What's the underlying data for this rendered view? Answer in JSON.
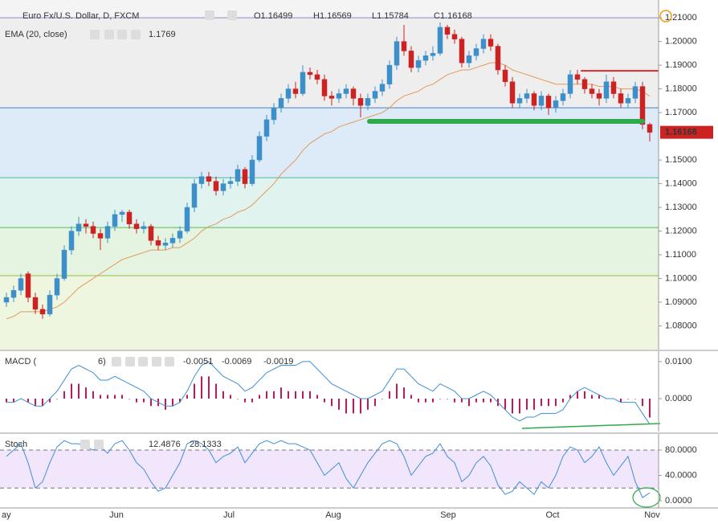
{
  "chart_data": [
    {
      "type": "candlestick",
      "title": "Euro Fx/U.S. Dollar, D, FXCM",
      "header": [
        "O1.16499",
        "H1.16569",
        "L1.15784",
        "C1.16168"
      ],
      "colors": {
        "up": "#3d8fc9",
        "down": "#cc2222"
      },
      "ylim": [
        1.07,
        1.2175
      ],
      "yticks": [
        {
          "value": 1.21,
          "label": "1.21000"
        },
        {
          "value": 1.2,
          "label": "1.20000"
        },
        {
          "value": 1.19,
          "label": "1.19000"
        },
        {
          "value": 1.18,
          "label": "1.18000"
        },
        {
          "value": 1.17,
          "label": "1.17000"
        },
        {
          "value": 1.15,
          "label": "1.15000"
        },
        {
          "value": 1.14,
          "label": "1.14000"
        },
        {
          "value": 1.13,
          "label": "1.13000"
        },
        {
          "value": 1.12,
          "label": "1.12000"
        },
        {
          "value": 1.11,
          "label": "1.11000"
        },
        {
          "value": 1.1,
          "label": "1.10000"
        },
        {
          "value": 1.09,
          "label": "1.09000"
        },
        {
          "value": 1.08,
          "label": "1.08000"
        }
      ],
      "x_labels": [
        "ay",
        "Jun",
        "Jul",
        "Aug",
        "Sep",
        "Oct",
        "Nov"
      ],
      "levels": {
        "values": [
          1.21,
          1.172,
          1.1425,
          1.1215,
          1.1012
        ],
        "colors": [
          "#8a8ad0",
          "#4a7fc0",
          "#4fb3a0",
          "#5cb85c",
          "#9cb84a"
        ],
        "fills": [
          "#eeeeee",
          "#dcebf7",
          "#e0f3ee",
          "#e5f4e0",
          "#eef6e0"
        ]
      },
      "drawings": [
        {
          "color": "#d32f2f",
          "price": 1.1876
        },
        {
          "color": "#2eaa4a",
          "price": 1.1663
        }
      ],
      "ema": {
        "name": "EMA (20, close)",
        "color": "#e39a5a",
        "values": [
          1.083,
          1.084,
          1.086,
          1.086,
          1.086,
          1.086,
          1.087,
          1.088,
          1.09,
          1.093,
          1.096,
          1.098,
          1.1,
          1.102,
          1.104,
          1.106,
          1.108,
          1.109,
          1.11,
          1.111,
          1.112,
          1.112,
          1.112,
          1.113,
          1.113,
          1.115,
          1.117,
          1.12,
          1.122,
          1.123,
          1.125,
          1.126,
          1.128,
          1.129,
          1.131,
          1.134,
          1.137,
          1.14,
          1.144,
          1.147,
          1.15,
          1.154,
          1.157,
          1.159,
          1.161,
          1.162,
          1.164,
          1.165,
          1.166,
          1.167,
          1.168,
          1.169,
          1.17,
          1.172,
          1.175,
          1.177,
          1.178,
          1.179,
          1.181,
          1.182,
          1.184,
          1.186,
          1.187,
          1.188,
          1.188,
          1.189,
          1.19,
          1.191,
          1.191,
          1.19,
          1.188,
          1.187,
          1.186,
          1.185,
          1.184,
          1.183,
          1.182,
          1.182,
          1.182,
          1.182,
          1.182,
          1.182,
          1.181,
          1.181,
          1.181,
          1.18,
          1.18,
          1.18,
          1.179,
          1.1769
        ]
      },
      "candles": [
        [
          1.09,
          1.094,
          1.088,
          1.092
        ],
        [
          1.092,
          1.097,
          1.09,
          1.095
        ],
        [
          1.095,
          1.102,
          1.093,
          1.1
        ],
        [
          1.102,
          1.103,
          1.09,
          1.092
        ],
        [
          1.092,
          1.094,
          1.085,
          1.087
        ],
        [
          1.087,
          1.089,
          1.083,
          1.085
        ],
        [
          1.085,
          1.095,
          1.084,
          1.093
        ],
        [
          1.093,
          1.102,
          1.091,
          1.1
        ],
        [
          1.1,
          1.114,
          1.099,
          1.112
        ],
        [
          1.112,
          1.122,
          1.11,
          1.12
        ],
        [
          1.12,
          1.126,
          1.118,
          1.123
        ],
        [
          1.123,
          1.125,
          1.119,
          1.122
        ],
        [
          1.122,
          1.124,
          1.117,
          1.119
        ],
        [
          1.119,
          1.121,
          1.112,
          1.117
        ],
        [
          1.117,
          1.124,
          1.115,
          1.122
        ],
        [
          1.122,
          1.129,
          1.12,
          1.127
        ],
        [
          1.127,
          1.129,
          1.124,
          1.128
        ],
        [
          1.128,
          1.129,
          1.121,
          1.123
        ],
        [
          1.123,
          1.125,
          1.119,
          1.121
        ],
        [
          1.121,
          1.124,
          1.119,
          1.122
        ],
        [
          1.122,
          1.123,
          1.114,
          1.116
        ],
        [
          1.116,
          1.118,
          1.112,
          1.114
        ],
        [
          1.114,
          1.117,
          1.112,
          1.115
        ],
        [
          1.115,
          1.119,
          1.113,
          1.117
        ],
        [
          1.117,
          1.122,
          1.115,
          1.12
        ],
        [
          1.12,
          1.132,
          1.119,
          1.13
        ],
        [
          1.13,
          1.142,
          1.128,
          1.14
        ],
        [
          1.14,
          1.145,
          1.138,
          1.143
        ],
        [
          1.143,
          1.145,
          1.139,
          1.141
        ],
        [
          1.141,
          1.143,
          1.135,
          1.137
        ],
        [
          1.137,
          1.142,
          1.135,
          1.14
        ],
        [
          1.14,
          1.143,
          1.138,
          1.141
        ],
        [
          1.141,
          1.148,
          1.139,
          1.146
        ],
        [
          1.146,
          1.147,
          1.138,
          1.14
        ],
        [
          1.14,
          1.152,
          1.139,
          1.15
        ],
        [
          1.15,
          1.162,
          1.149,
          1.16
        ],
        [
          1.16,
          1.169,
          1.158,
          1.167
        ],
        [
          1.167,
          1.174,
          1.165,
          1.172
        ],
        [
          1.172,
          1.178,
          1.17,
          1.176
        ],
        [
          1.176,
          1.182,
          1.174,
          1.18
        ],
        [
          1.18,
          1.183,
          1.176,
          1.178
        ],
        [
          1.178,
          1.19,
          1.177,
          1.187
        ],
        [
          1.187,
          1.189,
          1.184,
          1.186
        ],
        [
          1.186,
          1.188,
          1.182,
          1.184
        ],
        [
          1.184,
          1.186,
          1.175,
          1.177
        ],
        [
          1.177,
          1.179,
          1.173,
          1.176
        ],
        [
          1.176,
          1.18,
          1.174,
          1.178
        ],
        [
          1.178,
          1.182,
          1.176,
          1.18
        ],
        [
          1.18,
          1.181,
          1.173,
          1.176
        ],
        [
          1.176,
          1.178,
          1.168,
          1.173
        ],
        [
          1.173,
          1.178,
          1.171,
          1.176
        ],
        [
          1.176,
          1.181,
          1.174,
          1.179
        ],
        [
          1.179,
          1.184,
          1.177,
          1.182
        ],
        [
          1.182,
          1.192,
          1.18,
          1.19
        ],
        [
          1.19,
          1.202,
          1.188,
          1.2
        ],
        [
          1.2,
          1.207,
          1.194,
          1.196
        ],
        [
          1.196,
          1.198,
          1.187,
          1.189
        ],
        [
          1.189,
          1.194,
          1.187,
          1.192
        ],
        [
          1.192,
          1.196,
          1.19,
          1.194
        ],
        [
          1.194,
          1.198,
          1.192,
          1.195
        ],
        [
          1.195,
          1.208,
          1.194,
          1.206
        ],
        [
          1.206,
          1.207,
          1.201,
          1.203
        ],
        [
          1.203,
          1.205,
          1.199,
          1.201
        ],
        [
          1.201,
          1.202,
          1.189,
          1.191
        ],
        [
          1.191,
          1.196,
          1.189,
          1.194
        ],
        [
          1.194,
          1.199,
          1.192,
          1.197
        ],
        [
          1.197,
          1.203,
          1.195,
          1.201
        ],
        [
          1.201,
          1.203,
          1.196,
          1.198
        ],
        [
          1.198,
          1.199,
          1.186,
          1.188
        ],
        [
          1.188,
          1.19,
          1.181,
          1.183
        ],
        [
          1.183,
          1.185,
          1.172,
          1.174
        ],
        [
          1.174,
          1.178,
          1.172,
          1.176
        ],
        [
          1.176,
          1.18,
          1.174,
          1.178
        ],
        [
          1.178,
          1.179,
          1.171,
          1.173
        ],
        [
          1.173,
          1.179,
          1.171,
          1.177
        ],
        [
          1.177,
          1.178,
          1.169,
          1.172
        ],
        [
          1.172,
          1.177,
          1.17,
          1.175
        ],
        [
          1.175,
          1.18,
          1.173,
          1.178
        ],
        [
          1.178,
          1.188,
          1.176,
          1.186
        ],
        [
          1.186,
          1.188,
          1.182,
          1.184
        ],
        [
          1.184,
          1.185,
          1.178,
          1.18
        ],
        [
          1.18,
          1.182,
          1.176,
          1.178
        ],
        [
          1.178,
          1.18,
          1.173,
          1.176
        ],
        [
          1.176,
          1.186,
          1.174,
          1.183
        ],
        [
          1.183,
          1.185,
          1.176,
          1.178
        ],
        [
          1.178,
          1.18,
          1.172,
          1.174
        ],
        [
          1.174,
          1.178,
          1.172,
          1.176
        ],
        [
          1.176,
          1.183,
          1.174,
          1.181
        ],
        [
          1.181,
          1.183,
          1.163,
          1.165
        ],
        [
          1.16499,
          1.16569,
          1.15784,
          1.16168
        ]
      ]
    },
    {
      "type": "macd",
      "name": "MACD (",
      "name_end": "6)",
      "ylim": [
        -0.0089,
        0.0128
      ],
      "yticks": [
        {
          "value": 0.01,
          "label": "0.0100"
        },
        {
          "value": 0,
          "label": "0.0000"
        }
      ],
      "histogram": {
        "color": "#c2185b",
        "values": [
          -0.001,
          -0.001,
          0.0,
          -0.001,
          -0.002,
          -0.002,
          -0.001,
          0.0,
          0.002,
          0.004,
          0.004,
          0.003,
          0.002,
          0.001,
          0.001,
          0.001,
          0.001,
          0.0,
          -0.001,
          -0.001,
          -0.002,
          -0.002,
          -0.003,
          -0.002,
          -0.001,
          0.001,
          0.004,
          0.006,
          0.006,
          0.004,
          0.002,
          0.001,
          0.0,
          -0.001,
          -0.001,
          0.001,
          0.002,
          0.002,
          0.003,
          0.002,
          0.002,
          0.002,
          0.002,
          0.001,
          -0.001,
          -0.002,
          -0.003,
          -0.004,
          -0.004,
          -0.004,
          -0.003,
          -0.002,
          0.0,
          0.002,
          0.004,
          0.003,
          0.001,
          -0.001,
          -0.001,
          -0.001,
          0.0,
          0.0,
          -0.001,
          -0.001,
          -0.002,
          -0.001,
          -0.001,
          -0.001,
          -0.002,
          -0.003,
          -0.004,
          -0.004,
          -0.003,
          -0.003,
          -0.002,
          -0.002,
          -0.002,
          -0.001,
          0.001,
          0.002,
          0.002,
          0.001,
          0.001,
          0.0,
          0.0,
          -0.001,
          0.0,
          0.0,
          -0.002,
          -0.0051
        ]
      },
      "line": {
        "color": "#3f8fd8",
        "values": [
          -0.001,
          -0.001,
          0.0,
          -0.001,
          -0.002,
          -0.002,
          0.0,
          0.002,
          0.005,
          0.008,
          0.009,
          0.008,
          0.007,
          0.005,
          0.005,
          0.006,
          0.005,
          0.004,
          0.003,
          0.002,
          0.0,
          -0.001,
          -0.002,
          -0.002,
          -0.001,
          0.002,
          0.006,
          0.009,
          0.01,
          0.008,
          0.006,
          0.005,
          0.004,
          0.002,
          0.003,
          0.005,
          0.007,
          0.008,
          0.009,
          0.009,
          0.009,
          0.01,
          0.01,
          0.008,
          0.006,
          0.004,
          0.003,
          0.002,
          0.001,
          0.0,
          0.0,
          0.001,
          0.002,
          0.005,
          0.008,
          0.008,
          0.006,
          0.004,
          0.003,
          0.002,
          0.004,
          0.003,
          0.002,
          0.0,
          0.0,
          0.001,
          0.002,
          0.001,
          -0.001,
          -0.003,
          -0.005,
          -0.006,
          -0.005,
          -0.005,
          -0.004,
          -0.004,
          -0.004,
          -0.003,
          0.0,
          0.002,
          0.003,
          0.002,
          0.001,
          0.0,
          0.0,
          -0.001,
          -0.001,
          -0.001,
          -0.004,
          -0.0069
        ]
      },
      "signal_value": -0.0019,
      "signal_color": "#e07b39"
    },
    {
      "type": "stoch",
      "name": "Stoch",
      "ylim": [
        -11.4,
        105.4
      ],
      "yticks": [
        {
          "value": 80,
          "label": "80.0000"
        },
        {
          "value": 40,
          "label": "40.0000"
        },
        {
          "value": 0,
          "label": "0.0000"
        }
      ],
      "band": [
        20,
        80
      ],
      "color": "#3f8fd8",
      "d_value": 28.1333,
      "d_color": "#e07b39",
      "values": [
        70,
        80,
        90,
        60,
        20,
        30,
        60,
        85,
        95,
        90,
        90,
        85,
        80,
        85,
        75,
        90,
        95,
        80,
        60,
        50,
        30,
        15,
        20,
        40,
        60,
        90,
        95,
        90,
        80,
        60,
        70,
        75,
        85,
        60,
        75,
        90,
        95,
        90,
        95,
        90,
        90,
        85,
        80,
        60,
        40,
        50,
        60,
        35,
        20,
        40,
        60,
        75,
        90,
        95,
        90,
        70,
        40,
        55,
        70,
        75,
        90,
        70,
        60,
        30,
        40,
        60,
        70,
        55,
        25,
        10,
        15,
        30,
        20,
        10,
        30,
        20,
        40,
        70,
        85,
        80,
        60,
        70,
        85,
        60,
        40,
        55,
        70,
        30,
        5,
        12.4876
      ]
    }
  ]
}
